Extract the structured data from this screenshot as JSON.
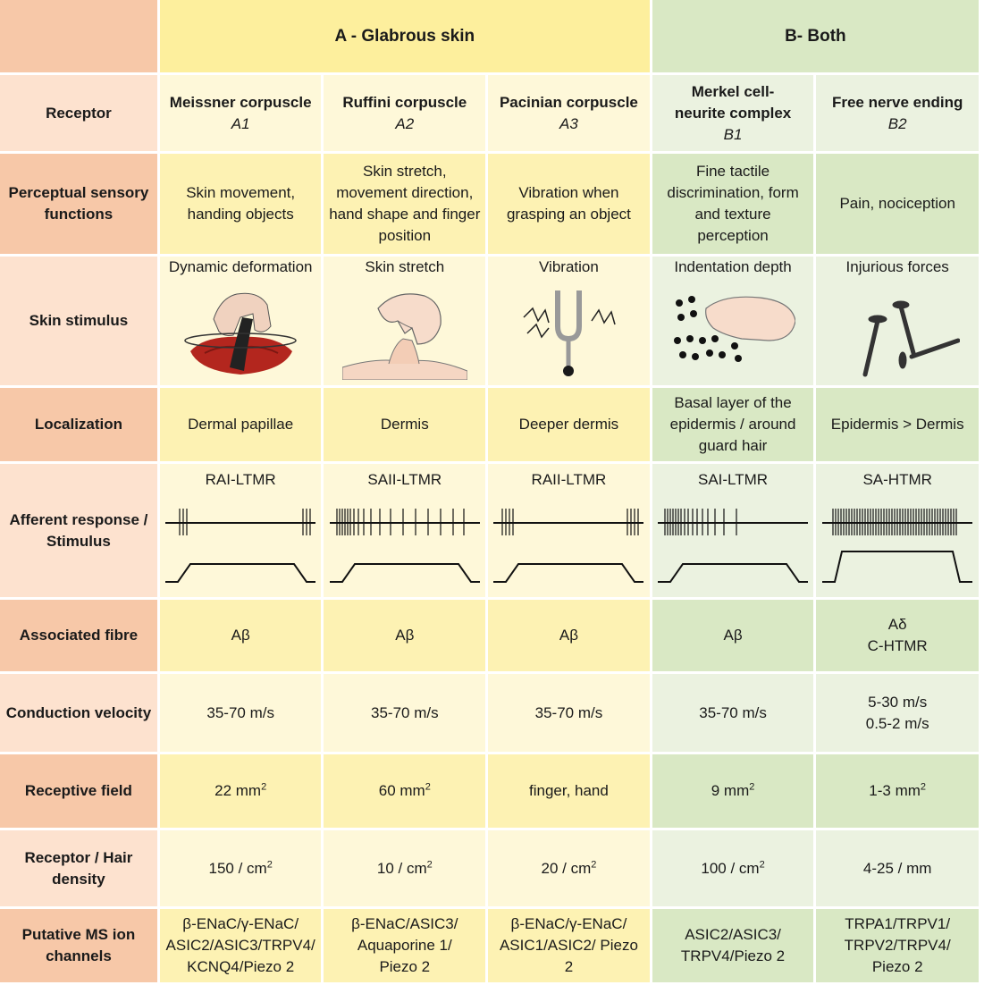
{
  "group_headers": {
    "a": "A - Glabrous skin",
    "b": "B- Both"
  },
  "row_labels": {
    "receptor": "Receptor",
    "perceptual": "Perceptual sensory functions",
    "stimulus": "Skin stimulus",
    "localization": "Localization",
    "afferent": "Afferent response / Stimulus",
    "fibre": "Associated fibre",
    "velocity": "Conduction velocity",
    "field": "Receptive field",
    "density": "Receptor / Hair density",
    "channels": "Putative MS ion channels"
  },
  "columns": [
    {
      "receptor": "Meissner corpuscle",
      "code": "A1",
      "perceptual": "Skin movement, handing objects",
      "stimulus": "Dynamic deformation",
      "stimulus_icon": "hand-pressing-skin-icon",
      "localization": "Dermal papillae",
      "afferent": "RAI-LTMR",
      "fibre": "Aβ",
      "velocity": "35-70 m/s",
      "field_value": "22 mm",
      "field_sup": "2",
      "density_value": "150 / cm",
      "density_sup": "2",
      "channels": "β-ENaC/γ-ENaC/ ASIC2/ASIC3/TRPV4/ KCNQ4/Piezo 2"
    },
    {
      "receptor": "Ruffini corpuscle",
      "code": "A2",
      "perceptual": "Skin stretch, movement direction, hand shape and finger position",
      "stimulus": "Skin stretch",
      "stimulus_icon": "pinched-skin-icon",
      "localization": "Dermis",
      "afferent": "SAII-LTMR",
      "fibre": "Aβ",
      "velocity": "35-70 m/s",
      "field_value": "60 mm",
      "field_sup": "2",
      "density_value": "10 / cm",
      "density_sup": "2",
      "channels": "β-ENaC/ASIC3/ Aquaporine 1/ Piezo 2"
    },
    {
      "receptor": "Pacinian corpuscle",
      "code": "A3",
      "perceptual": "Vibration when grasping an object",
      "stimulus": "Vibration",
      "stimulus_icon": "tuning-fork-icon",
      "localization": "Deeper dermis",
      "afferent": "RAII-LTMR",
      "fibre": "Aβ",
      "velocity": "35-70 m/s",
      "field_value": "finger, hand",
      "field_sup": "",
      "density_value": "20 / cm",
      "density_sup": "2",
      "channels": "β-ENaC/γ-ENaC/ ASIC1/ASIC2/ Piezo 2"
    },
    {
      "receptor": "Merkel cell- neurite complex",
      "code": "B1",
      "perceptual": "Fine tactile discrimination, form and texture perception",
      "stimulus": "Indentation depth",
      "stimulus_icon": "braille-hand-icon",
      "localization": "Basal layer of the epidermis / around guard hair",
      "afferent": "SAI-LTMR",
      "fibre": "Aβ",
      "velocity": "35-70 m/s",
      "field_value": "9 mm",
      "field_sup": "2",
      "density_value": "100 / cm",
      "density_sup": "2",
      "channels": "ASIC2/ASIC3/ TRPV4/Piezo 2"
    },
    {
      "receptor": "Free nerve ending",
      "code": "B2",
      "perceptual": "Pain, nociception",
      "stimulus": "Injurious forces",
      "stimulus_icon": "nails-icon",
      "localization": "Epidermis > Dermis",
      "afferent": "SA-HTMR",
      "fibre": "Aδ C-HTMR",
      "fibre_line1": "Aδ",
      "fibre_line2": "C-HTMR",
      "velocity_line1": "5-30 m/s",
      "velocity_line2": "0.5-2 m/s",
      "field_value": "1-3 mm",
      "field_sup": "2",
      "density_value": "4-25 / mm",
      "density_sup": "",
      "channels": "TRPA1/TRPV1/ TRPV2/TRPV4/ Piezo 2"
    }
  ],
  "colors": {
    "row_header_light": "#fde2cf",
    "row_header_dark": "#f7c8a8",
    "glabrous_dark": "#fdf2b3",
    "glabrous_light": "#fef8d9",
    "both_dark": "#d9e8c4",
    "both_light": "#ebf2e0"
  }
}
